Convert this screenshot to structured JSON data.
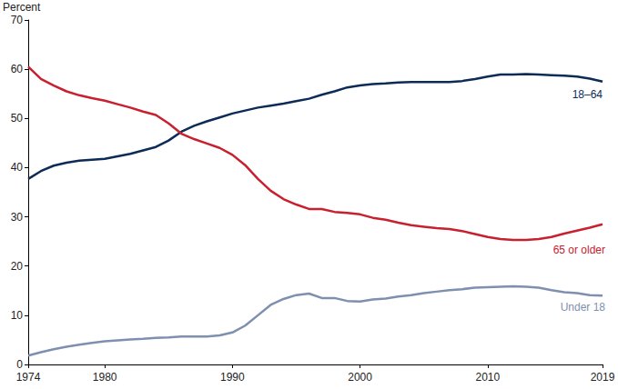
{
  "chart_data": {
    "type": "line",
    "y_label": "Percent",
    "x": [
      1974,
      1975,
      1976,
      1977,
      1978,
      1979,
      1980,
      1981,
      1982,
      1983,
      1984,
      1985,
      1986,
      1987,
      1988,
      1989,
      1990,
      1991,
      1992,
      1993,
      1994,
      1995,
      1996,
      1997,
      1998,
      1999,
      2000,
      2001,
      2002,
      2003,
      2004,
      2005,
      2006,
      2007,
      2008,
      2009,
      2010,
      2011,
      2012,
      2013,
      2014,
      2015,
      2016,
      2017,
      2018,
      2019
    ],
    "series": [
      {
        "name": "18–64",
        "color": "#0d2b57",
        "values": [
          37.7,
          39.3,
          40.4,
          41.0,
          41.4,
          41.6,
          41.8,
          42.3,
          42.8,
          43.5,
          44.2,
          45.5,
          47.3,
          48.5,
          49.4,
          50.2,
          51.0,
          51.6,
          52.2,
          52.6,
          53.0,
          53.5,
          54.0,
          54.8,
          55.5,
          56.3,
          56.7,
          57.0,
          57.1,
          57.3,
          57.4,
          57.4,
          57.4,
          57.4,
          57.6,
          58.0,
          58.5,
          58.9,
          58.9,
          59.0,
          58.9,
          58.8,
          58.7,
          58.5,
          58.1,
          57.5
        ]
      },
      {
        "name": "65 or older",
        "color": "#c8202f",
        "values": [
          60.5,
          58.0,
          56.7,
          55.5,
          54.7,
          54.1,
          53.6,
          52.9,
          52.2,
          51.4,
          50.7,
          49.0,
          46.9,
          45.8,
          44.9,
          44.0,
          42.6,
          40.5,
          37.7,
          35.3,
          33.6,
          32.5,
          31.6,
          31.6,
          31.0,
          30.8,
          30.5,
          29.8,
          29.4,
          28.8,
          28.3,
          28.0,
          27.7,
          27.5,
          27.1,
          26.5,
          25.9,
          25.5,
          25.3,
          25.3,
          25.5,
          25.9,
          26.6,
          27.2,
          27.8,
          28.5
        ]
      },
      {
        "name": "Under 18",
        "color": "#7f8fb0",
        "values": [
          1.8,
          2.5,
          3.1,
          3.6,
          4.0,
          4.4,
          4.7,
          4.9,
          5.1,
          5.2,
          5.4,
          5.5,
          5.7,
          5.7,
          5.7,
          5.9,
          6.5,
          7.9,
          10.0,
          12.1,
          13.3,
          14.1,
          14.4,
          13.5,
          13.5,
          12.9,
          12.8,
          13.2,
          13.4,
          13.8,
          14.1,
          14.5,
          14.8,
          15.1,
          15.3,
          15.6,
          15.7,
          15.8,
          15.9,
          15.8,
          15.6,
          15.1,
          14.7,
          14.5,
          14.1,
          14.0
        ]
      }
    ],
    "xlim": [
      1974,
      2019
    ],
    "xticks": [
      1974,
      1980,
      1990,
      2000,
      2010,
      2019
    ],
    "ylim": [
      0,
      70
    ],
    "yticks": [
      0,
      10,
      20,
      30,
      40,
      50,
      60,
      70
    ],
    "grid": false
  }
}
